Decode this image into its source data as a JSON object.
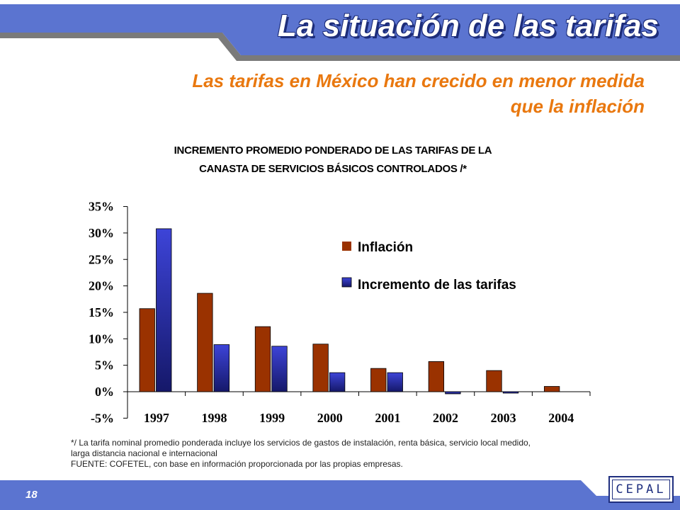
{
  "slide": {
    "title": "La situación de las tarifas",
    "subtitle_line1": "Las tarifas en México han crecido en menor medida",
    "subtitle_line2": "que la inflación",
    "chart_title_line1": "INCREMENTO PROMEDIO PONDERADO DE LAS TARIFAS DE LA",
    "chart_title_line2": "CANASTA DE SERVICIOS BÁSICOS CONTROLADOS /*",
    "note_line1": "*/ La tarifa nominal promedio ponderada incluye los servicios de gastos de instalación, renta básica, servicio local medido,",
    "note_line2": "larga distancia nacional e internacional",
    "note_line3": "FUENTE: COFETEL, con base en información proporcionada por las propias empresas.",
    "page_number": "18",
    "logo_text": "CEPAL"
  },
  "colors": {
    "header_band": "#5b74d0",
    "header_shadow": "#7a7a7a",
    "subtitle": "#e9780f",
    "inflation": "#9a3200",
    "tariffs_light": "#3d44d8",
    "tariffs_dark": "#151869"
  },
  "chart_data": {
    "type": "bar",
    "title": "INCREMENTO PROMEDIO PONDERADO DE LAS TARIFAS DE LA CANASTA DE SERVICIOS BÁSICOS CONTROLADOS /*",
    "categories": [
      "1997",
      "1998",
      "1999",
      "2000",
      "2001",
      "2002",
      "2003",
      "2004"
    ],
    "series": [
      {
        "name": "Inflación",
        "values": [
          15.7,
          18.6,
          12.3,
          9.0,
          4.4,
          5.7,
          4.0,
          1.0
        ]
      },
      {
        "name": "Incremento de las tarifas",
        "values": [
          30.8,
          8.9,
          8.6,
          3.6,
          3.6,
          -0.4,
          -0.2,
          null
        ]
      }
    ],
    "ylim": [
      -5,
      35
    ],
    "yticks": [
      "-5%",
      "0%",
      "5%",
      "10%",
      "15%",
      "20%",
      "25%",
      "30%",
      "35%"
    ],
    "ytick_values": [
      -5,
      0,
      5,
      10,
      15,
      20,
      25,
      30,
      35
    ],
    "legend_position": "top-right",
    "grid": false
  }
}
